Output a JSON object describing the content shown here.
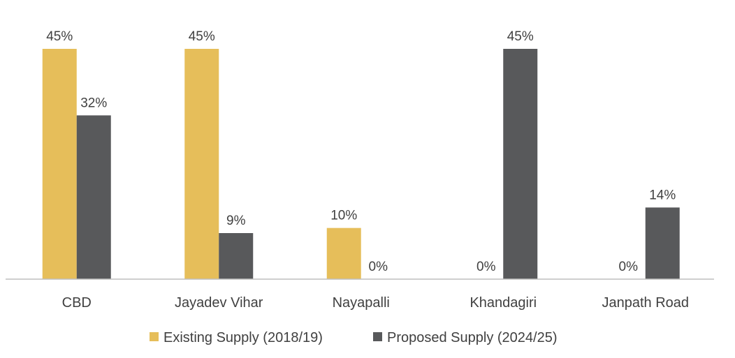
{
  "chart_data": {
    "type": "bar",
    "title": "",
    "xlabel": "",
    "ylabel": "",
    "categories": [
      "CBD",
      "Jayadev Vihar",
      "Nayapalli",
      "Khandagiri",
      "Janpath Road"
    ],
    "series": [
      {
        "name": "Existing Supply (2018/19)",
        "color": "#E6BE5A",
        "values": [
          45,
          45,
          10,
          0,
          0
        ],
        "labels": [
          "45%",
          "45%",
          "10%",
          "0%",
          "0%"
        ]
      },
      {
        "name": "Proposed Supply (2024/25)",
        "color": "#58595B",
        "values": [
          32,
          9,
          0,
          45,
          14
        ],
        "labels": [
          "32%",
          "9%",
          "0%",
          "45%",
          "14%"
        ]
      }
    ],
    "ylim": [
      0,
      50
    ],
    "grid": false,
    "legend_position": "bottom"
  }
}
